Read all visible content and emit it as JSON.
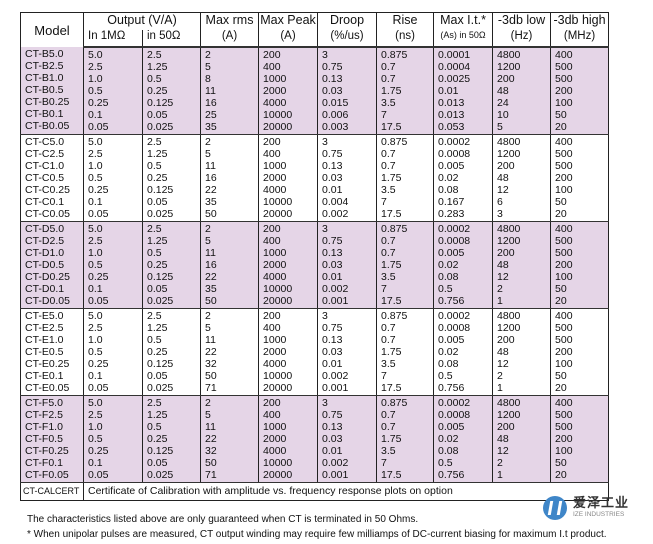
{
  "header": {
    "model": "Model",
    "output": "Output (V/A)",
    "in_1m": "In 1MΩ",
    "in_50": "in 50Ω",
    "max_rms": "Max rms",
    "max_rms_unit": "(A)",
    "max_peak": "Max Peak",
    "max_peak_unit": "(A)",
    "droop": "Droop",
    "droop_unit": "(%/us)",
    "rise": "Rise",
    "rise_unit": "(ns)",
    "max_it": "Max I.t.*",
    "max_it_unit": "(As) in 50Ω",
    "low": "-3db low",
    "low_unit": "(Hz)",
    "high": "-3db high",
    "high_unit": "(MHz)"
  },
  "groups": [
    {
      "shaded": true,
      "columns": [
        [
          "CT-B5.0",
          "CT-B2.5",
          "CT-B1.0",
          "CT-B0.5",
          "CT-B0.25",
          "CT-B0.1",
          "CT-B0.05"
        ],
        [
          "5.0",
          "2.5",
          "1.0",
          "0.5",
          "0.25",
          "0.1",
          "0.05"
        ],
        [
          "2.5",
          "1.25",
          "0.5",
          "0.25",
          "0.125",
          "0.05",
          "0.025"
        ],
        [
          "2",
          "5",
          "8",
          "11",
          "16",
          "25",
          "35"
        ],
        [
          "200",
          "400",
          "1000",
          "2000",
          "4000",
          "10000",
          "20000"
        ],
        [
          "3",
          "0.75",
          "0.13",
          "0.03",
          "0.015",
          "0.006",
          "0.003"
        ],
        [
          "0.875",
          "0.7",
          "0.7",
          "1.75",
          "3.5",
          "7",
          "17.5"
        ],
        [
          "0.0001",
          "0.0004",
          "0.0025",
          "0.01",
          "0.013",
          "0.013",
          "0.053"
        ],
        [
          "4800",
          "1200",
          "200",
          "48",
          "24",
          "10",
          "5"
        ],
        [
          "400",
          "500",
          "500",
          "200",
          "100",
          "50",
          "20"
        ]
      ]
    },
    {
      "shaded": false,
      "columns": [
        [
          "CT-C5.0",
          "CT-C2.5",
          "CT-C1.0",
          "CT-C0.5",
          "CT-C0.25",
          "CT-C0.1",
          "CT-C0.05"
        ],
        [
          "5.0",
          "2.5",
          "1.0",
          "0.5",
          "0.25",
          "0.1",
          "0.05"
        ],
        [
          "2.5",
          "1.25",
          "0.5",
          "0.25",
          "0.125",
          "0.05",
          "0.025"
        ],
        [
          "2",
          "5",
          "11",
          "16",
          "22",
          "35",
          "50"
        ],
        [
          "200",
          "400",
          "1000",
          "2000",
          "4000",
          "10000",
          "20000"
        ],
        [
          "3",
          "0.75",
          "0.13",
          "0.03",
          "0.01",
          "0.004",
          "0.002"
        ],
        [
          "0.875",
          "0.7",
          "0.7",
          "1.75",
          "3.5",
          "7",
          "17.5"
        ],
        [
          "0.0002",
          "0.0008",
          "0.005",
          "0.02",
          "0.08",
          "0.167",
          "0.283"
        ],
        [
          "4800",
          "1200",
          "200",
          "48",
          "12",
          "6",
          "3"
        ],
        [
          "400",
          "500",
          "500",
          "200",
          "100",
          "50",
          "20"
        ]
      ]
    },
    {
      "shaded": true,
      "columns": [
        [
          "CT-D5.0",
          "CT-D2.5",
          "CT-D1.0",
          "CT-D0.5",
          "CT-D0.25",
          "CT-D0.1",
          "CT-D0.05"
        ],
        [
          "5.0",
          "2.5",
          "1.0",
          "0.5",
          "0.25",
          "0.1",
          "0.05"
        ],
        [
          "2.5",
          "1.25",
          "0.5",
          "0.25",
          "0.125",
          "0.05",
          "0.025"
        ],
        [
          "2",
          "5",
          "11",
          "16",
          "22",
          "35",
          "50"
        ],
        [
          "200",
          "400",
          "1000",
          "2000",
          "4000",
          "10000",
          "20000"
        ],
        [
          "3",
          "0.75",
          "0.13",
          "0.03",
          "0.01",
          "0.002",
          "0.001"
        ],
        [
          "0.875",
          "0.7",
          "0.7",
          "1.75",
          "3.5",
          "7",
          "17.5"
        ],
        [
          "0.0002",
          "0.0008",
          "0.005",
          "0.02",
          "0.08",
          "0.5",
          "0.756"
        ],
        [
          "4800",
          "1200",
          "200",
          "48",
          "12",
          "2",
          "1"
        ],
        [
          "400",
          "500",
          "500",
          "200",
          "100",
          "50",
          "20"
        ]
      ]
    },
    {
      "shaded": false,
      "columns": [
        [
          "CT-E5.0",
          "CT-E2.5",
          "CT-E1.0",
          "CT-E0.5",
          "CT-E0.25",
          "CT-E0.1",
          "CT-E0.05"
        ],
        [
          "5.0",
          "2.5",
          "1.0",
          "0.5",
          "0.25",
          "0.1",
          "0.05"
        ],
        [
          "2.5",
          "1.25",
          "0.5",
          "0.25",
          "0.125",
          "0.05",
          "0.025"
        ],
        [
          "2",
          "5",
          "11",
          "22",
          "32",
          "50",
          "71"
        ],
        [
          "200",
          "400",
          "1000",
          "2000",
          "4000",
          "10000",
          "20000"
        ],
        [
          "3",
          "0.75",
          "0.13",
          "0.03",
          "0.01",
          "0.002",
          "0.001"
        ],
        [
          "0.875",
          "0.7",
          "0.7",
          "1.75",
          "3.5",
          "7",
          "17.5"
        ],
        [
          "0.0002",
          "0.0008",
          "0.005",
          "0.02",
          "0.08",
          "0.5",
          "0.756"
        ],
        [
          "4800",
          "1200",
          "200",
          "48",
          "12",
          "2",
          "1"
        ],
        [
          "400",
          "500",
          "500",
          "200",
          "100",
          "50",
          "20"
        ]
      ]
    },
    {
      "shaded": true,
      "columns": [
        [
          "CT-F5.0",
          "CT-F2.5",
          "CT-F1.0",
          "CT-F0.5",
          "CT-F0.25",
          "CT-F0.1",
          "CT-F0.05"
        ],
        [
          "5.0",
          "2.5",
          "1.0",
          "0.5",
          "0.25",
          "0.1",
          "0.05"
        ],
        [
          "2.5",
          "1.25",
          "0.5",
          "0.25",
          "0.125",
          "0.05",
          "0.025"
        ],
        [
          "2",
          "5",
          "11",
          "22",
          "32",
          "50",
          "71"
        ],
        [
          "200",
          "400",
          "1000",
          "2000",
          "4000",
          "10000",
          "20000"
        ],
        [
          "3",
          "0.75",
          "0.13",
          "0.03",
          "0.01",
          "0.002",
          "0.001"
        ],
        [
          "0.875",
          "0.7",
          "0.7",
          "1.75",
          "3.5",
          "7",
          "17.5"
        ],
        [
          "0.0002",
          "0.0008",
          "0.005",
          "0.02",
          "0.08",
          "0.5",
          "0.756"
        ],
        [
          "4800",
          "1200",
          "200",
          "48",
          "12",
          "2",
          "1"
        ],
        [
          "400",
          "500",
          "500",
          "200",
          "100",
          "50",
          "20"
        ]
      ]
    }
  ],
  "cert": {
    "model": "CT-CALCERT",
    "description": "Certificate of Calibration with amplitude vs. frequency response plots on option"
  },
  "notes": [
    "The characteristics listed above are only guaranteed when CT is terminated in 50 Ohms.",
    "* When unipolar pulses are measured, CT output winding may require few milliamps of DC-current biasing for maximum I.t product."
  ],
  "logo": {
    "cn": "爱泽工业",
    "en": "IZE INDUSTRIES"
  },
  "colors": {
    "shaded_row": "#e5d5e7",
    "logo_blue": "#3f86c8"
  }
}
